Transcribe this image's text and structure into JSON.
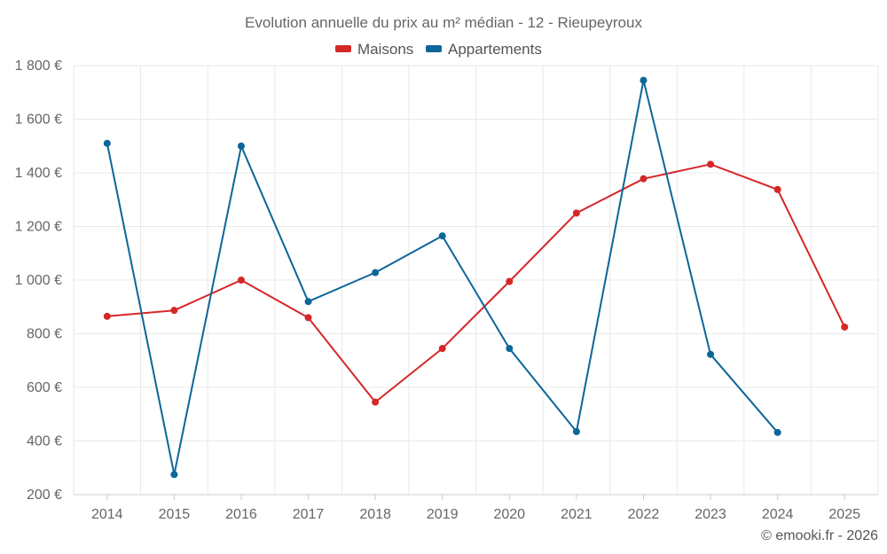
{
  "chart_data": {
    "type": "line",
    "title": "Evolution annuelle du prix au m² médian - 12 - Rieupeyroux",
    "categories": [
      "2014",
      "2015",
      "2016",
      "2017",
      "2018",
      "2019",
      "2020",
      "2021",
      "2022",
      "2023",
      "2024",
      "2025"
    ],
    "series": [
      {
        "name": "Maisons",
        "color": "#d62728",
        "values": [
          865,
          887,
          1000,
          860,
          545,
          745,
          995,
          1250,
          1378,
          1432,
          1338,
          825
        ]
      },
      {
        "name": "Appartements",
        "color": "#0c6698",
        "values": [
          1510,
          275,
          1500,
          920,
          1028,
          1165,
          745,
          435,
          1745,
          723,
          432,
          null
        ]
      }
    ],
    "ylim": [
      200,
      1800
    ],
    "yticks": [
      200,
      400,
      600,
      800,
      1000,
      1200,
      1400,
      1600,
      1800
    ],
    "ytick_labels": [
      "200 €",
      "400 €",
      "600 €",
      "800 €",
      "1 000 €",
      "1 200 €",
      "1 400 €",
      "1 600 €",
      "1 800 €"
    ],
    "xlabel": "",
    "ylabel": "",
    "grid": true,
    "legend": "top-center"
  },
  "credit": "© emooki.fr - 2026"
}
